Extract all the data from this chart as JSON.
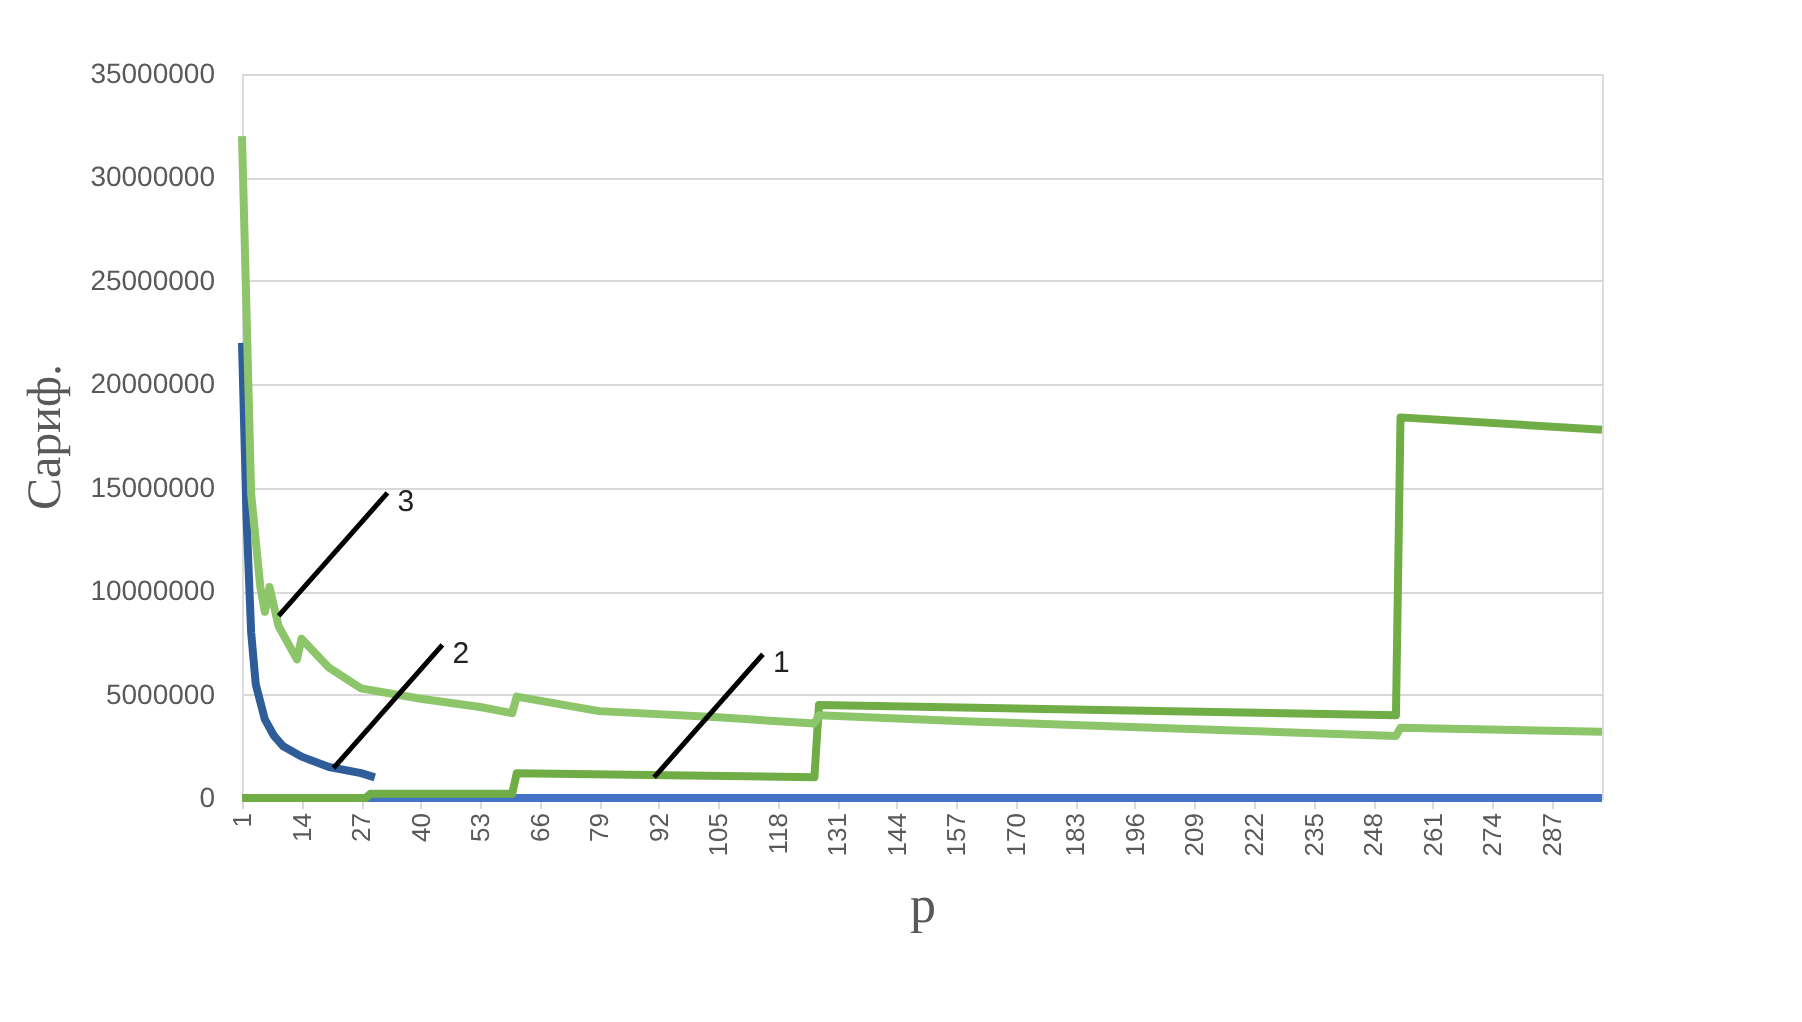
{
  "chart_data": {
    "type": "line",
    "xlabel": "p",
    "ylabel": "Сариф.",
    "xlim": [
      1,
      298
    ],
    "xticks": [
      1,
      14,
      27,
      40,
      53,
      66,
      79,
      92,
      105,
      118,
      131,
      144,
      157,
      170,
      183,
      196,
      209,
      222,
      235,
      248,
      261,
      274,
      287
    ],
    "ylim": [
      0,
      35000000
    ],
    "yticks": [
      0,
      5000000,
      10000000,
      15000000,
      20000000,
      25000000,
      30000000,
      35000000
    ],
    "grid": "y",
    "legend": false,
    "marker": "none",
    "line_style": "solid",
    "series": [
      {
        "color": "#4472c4",
        "x": [
          1,
          298
        ],
        "values": [
          0,
          0
        ]
      },
      {
        "color": "#70ad47",
        "x": [
          1,
          28,
          29,
          60,
          61,
          126,
          127,
          253,
          254,
          298
        ],
        "values": [
          0,
          0,
          200000,
          200000,
          1200000,
          1000000,
          4500000,
          4000000,
          18400000,
          17800000
        ]
      },
      {
        "color": "#2e5d9a",
        "x": [
          1,
          2,
          3,
          4,
          6,
          8,
          10,
          14,
          20,
          27,
          30
        ],
        "values": [
          22000000,
          13500000,
          8000000,
          5500000,
          3800000,
          3000000,
          2500000,
          2000000,
          1500000,
          1200000,
          1000000
        ]
      },
      {
        "color": "#8cc56a",
        "x": [
          1,
          3,
          5,
          6,
          7,
          9,
          13,
          14,
          20,
          27,
          40,
          53,
          60,
          61,
          79,
          105,
          126,
          127,
          160,
          200,
          253,
          254,
          298
        ],
        "values": [
          32000000,
          14700000,
          10200000,
          9000000,
          10200000,
          8300000,
          6700000,
          7700000,
          6300000,
          5300000,
          4800000,
          4400000,
          4100000,
          4900000,
          4200000,
          3900000,
          3600000,
          4000000,
          3700000,
          3400000,
          3000000,
          3400000,
          3200000
        ]
      }
    ],
    "annotations": [
      {
        "text": "1",
        "x": 91,
        "y": 1000000
      },
      {
        "text": "2",
        "x": 21,
        "y": 1450000
      },
      {
        "text": "3",
        "x": 9,
        "y": 8800000
      }
    ]
  }
}
